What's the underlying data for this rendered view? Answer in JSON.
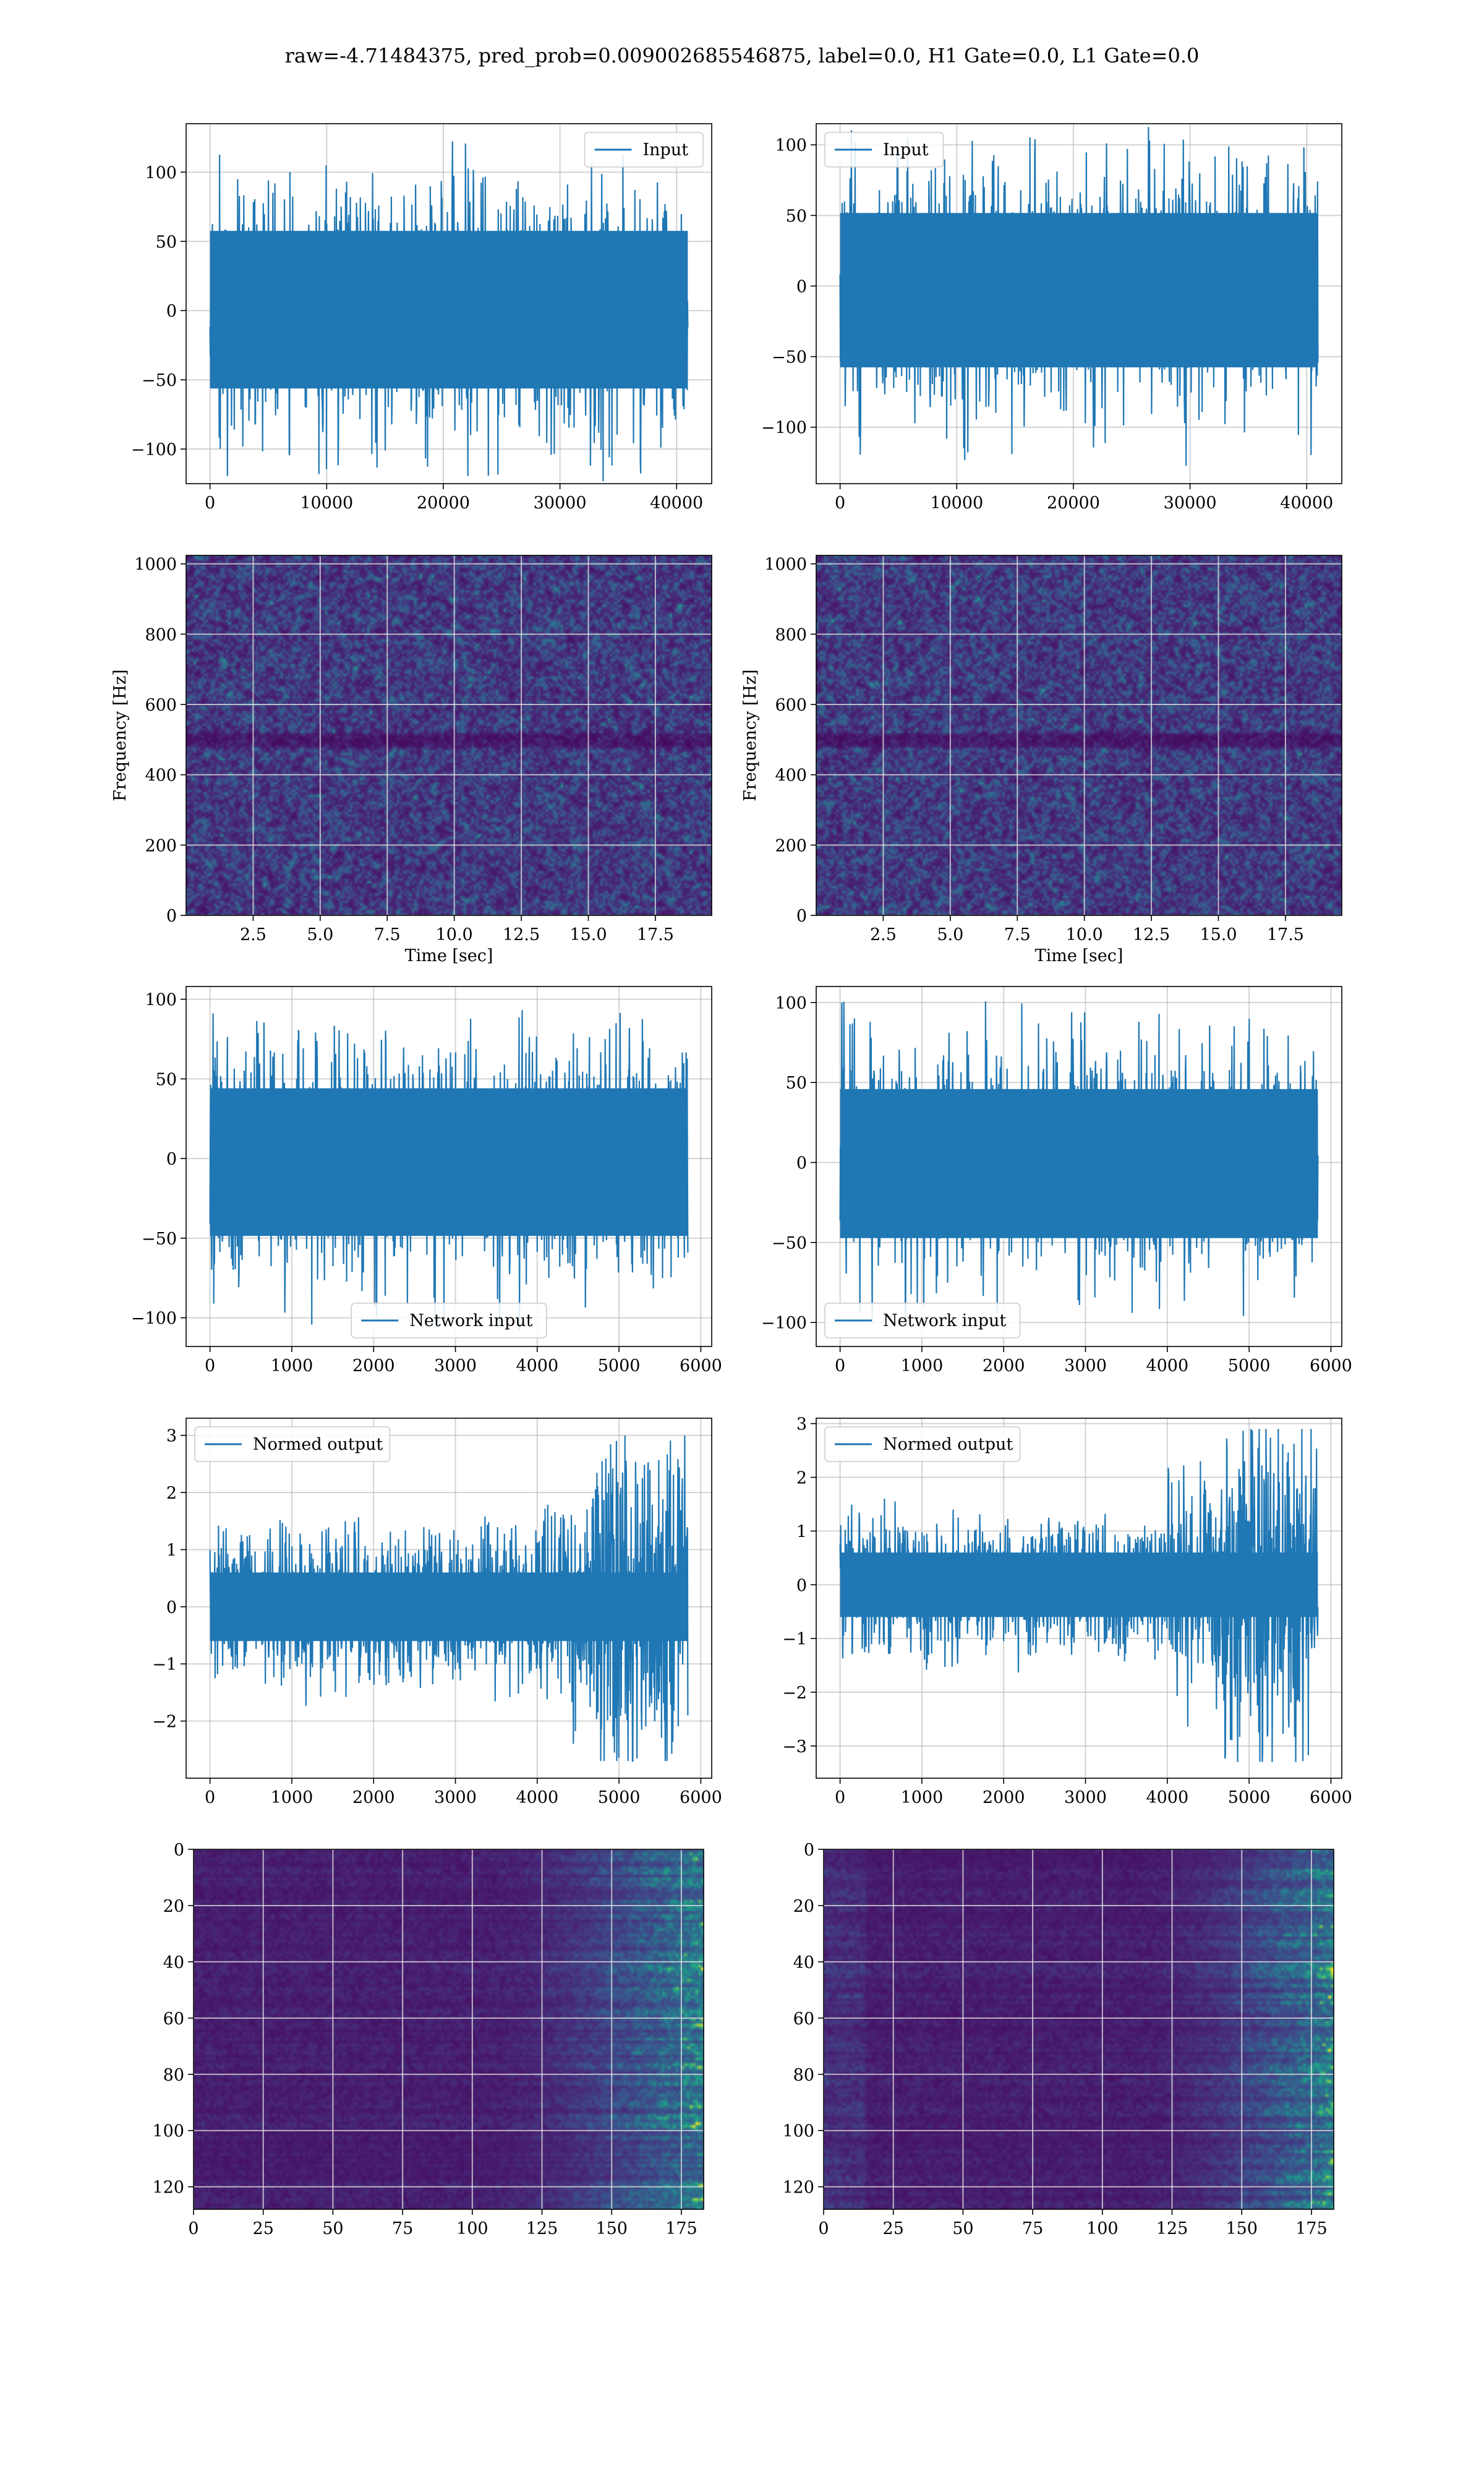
{
  "figure": {
    "suptitle": "raw=-4.71484375, pred_prob=0.009002685546875, label=0.0, H1 Gate=0.0, L1 Gate=0.0",
    "series_color": "#1f77b4"
  },
  "chart_data": [
    {
      "id": "input-h1",
      "type": "line",
      "legend": [
        "Input"
      ],
      "legend_position": "upper right",
      "series": [
        {
          "name": "Input",
          "n_samples": 40960,
          "amplitude_envelope": [
            -125,
            128
          ]
        }
      ],
      "xlim": [
        -2048,
        43008
      ],
      "ylim": [
        -125,
        135
      ],
      "xticks": [
        0,
        10000,
        20000,
        30000,
        40000
      ],
      "yticks": [
        -100,
        -50,
        0,
        50,
        100
      ],
      "grid": true
    },
    {
      "id": "input-l1",
      "type": "line",
      "legend": [
        "Input"
      ],
      "legend_position": "upper left",
      "series": [
        {
          "name": "Input",
          "n_samples": 40960,
          "amplitude_envelope": [
            -128,
            115
          ]
        }
      ],
      "xlim": [
        -2048,
        43008
      ],
      "ylim": [
        -140,
        115
      ],
      "xticks": [
        0,
        10000,
        20000,
        30000,
        40000
      ],
      "yticks": [
        -100,
        -50,
        0,
        50,
        100
      ],
      "grid": true
    },
    {
      "id": "spectrogram-h1",
      "type": "heatmap",
      "colormap": "viridis",
      "xlabel": "Time [sec]",
      "ylabel": "Frequency [Hz]",
      "xlim": [
        0,
        19.6
      ],
      "ylim": [
        0,
        1024
      ],
      "xticks": [
        2.5,
        5.0,
        7.5,
        10.0,
        12.5,
        15.0,
        17.5
      ],
      "yticks": [
        0,
        200,
        400,
        600,
        800,
        1000
      ],
      "grid": true
    },
    {
      "id": "spectrogram-l1",
      "type": "heatmap",
      "colormap": "viridis",
      "xlabel": "Time [sec]",
      "ylabel": "Frequency [Hz]",
      "xlim": [
        0,
        19.6
      ],
      "ylim": [
        0,
        1024
      ],
      "xticks": [
        2.5,
        5.0,
        7.5,
        10.0,
        12.5,
        15.0,
        17.5
      ],
      "yticks": [
        0,
        200,
        400,
        600,
        800,
        1000
      ],
      "grid": true
    },
    {
      "id": "network-input-h1",
      "type": "line",
      "legend": [
        "Network input"
      ],
      "legend_position": "lower center",
      "series": [
        {
          "name": "Network input",
          "n_samples": 5841,
          "amplitude_envelope": [
            -108,
            98
          ]
        }
      ],
      "xlim": [
        -292,
        6133
      ],
      "ylim": [
        -118,
        108
      ],
      "xticks": [
        0,
        1000,
        2000,
        3000,
        4000,
        5000,
        6000
      ],
      "yticks": [
        -100,
        -50,
        0,
        50,
        100
      ],
      "grid": true
    },
    {
      "id": "network-input-l1",
      "type": "line",
      "legend": [
        "Network input"
      ],
      "legend_position": "lower left",
      "series": [
        {
          "name": "Network input",
          "n_samples": 5841,
          "amplitude_envelope": [
            -105,
            102
          ]
        }
      ],
      "xlim": [
        -292,
        6133
      ],
      "ylim": [
        -115,
        110
      ],
      "xticks": [
        0,
        1000,
        2000,
        3000,
        4000,
        5000,
        6000
      ],
      "yticks": [
        -100,
        -50,
        0,
        50,
        100
      ],
      "grid": true
    },
    {
      "id": "normed-output-h1",
      "type": "line",
      "legend": [
        "Normed output"
      ],
      "legend_position": "upper left",
      "series": [
        {
          "name": "Normed output",
          "n_samples": 5841,
          "amplitude_envelope": [
            -2.7,
            3.0
          ]
        }
      ],
      "xlim": [
        -292,
        6133
      ],
      "ylim": [
        -3.0,
        3.3
      ],
      "xticks": [
        0,
        1000,
        2000,
        3000,
        4000,
        5000,
        6000
      ],
      "yticks": [
        -2,
        -1,
        0,
        1,
        2,
        3
      ],
      "grid": true
    },
    {
      "id": "normed-output-l1",
      "type": "line",
      "legend": [
        "Normed output"
      ],
      "legend_position": "upper left",
      "series": [
        {
          "name": "Normed output",
          "n_samples": 5841,
          "amplitude_envelope": [
            -3.3,
            2.9
          ]
        }
      ],
      "xlim": [
        -292,
        6133
      ],
      "ylim": [
        -3.6,
        3.1
      ],
      "xticks": [
        0,
        1000,
        2000,
        3000,
        4000,
        5000,
        6000
      ],
      "yticks": [
        -3,
        -2,
        -1,
        0,
        1,
        2,
        3
      ],
      "grid": true
    },
    {
      "id": "feature-map-h1",
      "type": "heatmap",
      "colormap": "viridis",
      "rows": 128,
      "cols": 183,
      "origin": "upper",
      "xlim": [
        0,
        183
      ],
      "ylim": [
        128,
        0
      ],
      "xticks": [
        0,
        25,
        50,
        75,
        100,
        125,
        150,
        175
      ],
      "yticks": [
        0,
        20,
        40,
        60,
        80,
        100,
        120
      ],
      "grid": true
    },
    {
      "id": "feature-map-l1",
      "type": "heatmap",
      "colormap": "viridis",
      "rows": 128,
      "cols": 183,
      "origin": "upper",
      "xlim": [
        0,
        183
      ],
      "ylim": [
        128,
        0
      ],
      "xticks": [
        0,
        25,
        50,
        75,
        100,
        125,
        150,
        175
      ],
      "yticks": [
        0,
        20,
        40,
        60,
        80,
        100,
        120
      ],
      "grid": true
    }
  ]
}
